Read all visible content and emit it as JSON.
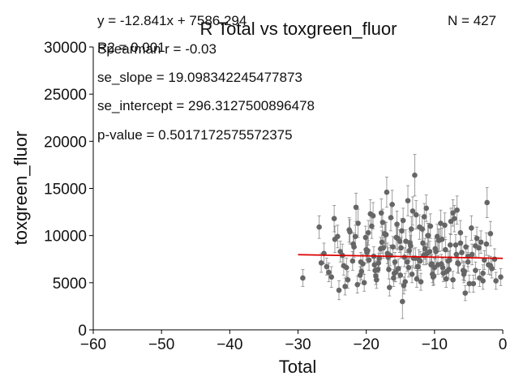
{
  "chart_data": {
    "type": "scatter",
    "title": "R Total vs toxgreen_fluor",
    "xlabel": "Total",
    "ylabel": "toxgreen_fluor",
    "xlim": [
      -60,
      0
    ],
    "ylim": [
      0,
      30000
    ],
    "xticks": [
      -60,
      -50,
      -40,
      -30,
      -20,
      -10,
      0
    ],
    "yticks": [
      0,
      5000,
      10000,
      15000,
      20000,
      25000,
      30000
    ],
    "xtick_labels": [
      "−60",
      "−50",
      "−40",
      "−30",
      "−20",
      "−10",
      "0"
    ],
    "ytick_labels": [
      "0",
      "5000",
      "10000",
      "15000",
      "20000",
      "25000",
      "30000"
    ],
    "grid": false,
    "colors": {
      "points": "#666666",
      "fit_line": "#dd0000",
      "error_bars": "#888888"
    },
    "annotations": {
      "equation": "y = -12.841x + 7586.294",
      "r2": "R2 = 0.001",
      "spearman": "Spearman r = -0.03",
      "se_slope": "se_slope = 19.098342245477873",
      "se_intercept": "se_intercept = 296.3127500896478",
      "p_value": "p-value = 0.5017172575572375",
      "n": "N = 427"
    },
    "fit": {
      "slope": -12.841,
      "intercept": 7586.294,
      "x_range": [
        -30,
        0
      ]
    },
    "series": [
      {
        "x": [
          -29.3,
          -26.9,
          -26.6,
          -26.2,
          -25.8,
          -25.1,
          -24.6,
          -24.0,
          -23.5,
          -22.9,
          -22.4,
          -21.8,
          -21.2,
          -20.7,
          -20.1,
          -19.6,
          -19.0,
          -18.5,
          -17.9,
          -17.3,
          -16.8,
          -16.2,
          -15.7,
          -15.1,
          -14.6,
          -14.0,
          -13.5,
          -12.9,
          -12.4,
          -11.8,
          -11.2,
          -10.7,
          -10.1,
          -9.6,
          -9.0,
          -8.5,
          -7.9,
          -7.3,
          -6.8,
          -6.2,
          -5.7,
          -5.1,
          -4.6,
          -4.0,
          -3.5,
          -2.9,
          -2.4,
          -1.8,
          -1.2,
          -0.3,
          -24.2,
          -23.1,
          -22.0,
          -21.5,
          -20.3,
          -19.2,
          -18.1,
          -17.0,
          -15.9,
          -14.8,
          -13.7,
          -12.6,
          -11.5,
          -10.4,
          -9.3,
          -8.2,
          -7.1,
          -6.0,
          -4.9,
          -3.8,
          -2.7,
          -1.6,
          -25.5,
          -24.7,
          -23.8,
          -22.7,
          -21.6,
          -20.5,
          -19.4,
          -18.3,
          -17.2,
          -16.1,
          -15.0,
          -13.9,
          -12.8,
          -11.7,
          -10.6,
          -9.5,
          -8.4,
          -7.3,
          -6.2,
          -5.1,
          -4.0,
          -2.9,
          -1.8,
          -21.3,
          -19.8,
          -18.7,
          -17.6,
          -16.5,
          -15.4,
          -14.3,
          -13.2,
          -12.1,
          -11.0,
          -9.9,
          -8.8,
          -7.7,
          -6.6,
          -5.5,
          -22.5,
          -20.9,
          -19.9,
          -18.8,
          -17.7,
          -16.6,
          -15.5,
          -14.4,
          -13.3,
          -12.2,
          -11.1,
          -10.0,
          -8.9,
          -7.8,
          -6.7,
          -5.6,
          -4.5,
          -3.4,
          -2.3,
          -23.3,
          -21.9,
          -20.8,
          -19.7,
          -18.6,
          -17.5,
          -16.4,
          -15.3,
          -14.2,
          -13.1,
          -12.0,
          -10.9,
          -9.8,
          -8.7,
          -7.6,
          -6.5,
          -5.4,
          -4.3,
          -3.2,
          -2.1,
          -1.0,
          -20.0,
          -18.9,
          -17.8,
          -16.7,
          -15.6,
          -14.5,
          -13.4,
          -12.3,
          -11.3,
          -10.2,
          -9.1,
          -8.0,
          -6.9,
          -5.8,
          -18.2,
          -17.1,
          -16.0,
          -14.9,
          -13.8,
          -12.7,
          -11.6,
          -10.5,
          -9.4,
          -8.3,
          -16.9,
          -15.8,
          -14.7,
          -13.6,
          -12.5,
          -11.4,
          -10.3
        ],
        "y": [
          5500,
          10900,
          7100,
          8100,
          6700,
          5600,
          9600,
          4200,
          7900,
          6600,
          10400,
          8800,
          11300,
          6200,
          9800,
          7400,
          12100,
          5300,
          8600,
          10200,
          7700,
          13300,
          6100,
          9400,
          11600,
          7200,
          8900,
          16400,
          6700,
          10700,
          12900,
          8300,
          5700,
          9900,
          7000,
          11100,
          6400,
          12400,
          8000,
          9200,
          5900,
          7800,
          10800,
          6300,
          8700,
          5200,
          9100,
          6800,
          7500,
          5600,
          9900,
          4600,
          7300,
          13000,
          5000,
          11000,
          7600,
          14600,
          6000,
          10500,
          8400,
          5400,
          12000,
          7000,
          9500,
          6200,
          11800,
          8200,
          4900,
          9700,
          7400,
          6500,
          6100,
          11800,
          8300,
          5300,
          9900,
          7000,
          12300,
          6400,
          10100,
          8800,
          5800,
          13700,
          7600,
          9200,
          11000,
          6900,
          8500,
          5300,
          10300,
          7200,
          8900,
          6000,
          10200,
          4800,
          8400,
          6300,
          11400,
          7900,
          9700,
          5100,
          12600,
          7300,
          10000,
          8600,
          6600,
          9000,
          7100,
          3900,
          10600,
          5800,
          8200,
          6900,
          9300,
          4500,
          11200,
          7700,
          5900,
          10900,
          8100,
          6600,
          9600,
          7400,
          12700,
          6200,
          8000,
          5500,
          13500,
          6800,
          9100,
          7200,
          10300,
          5700,
          8700,
          11900,
          6500,
          9400,
          7600,
          5100,
          10000,
          8300,
          6000,
          11500,
          7000,
          8800,
          4900,
          9300,
          6900,
          5200,
          8500,
          7800,
          12400,
          6400,
          9800,
          4700,
          10700,
          7500,
          8000,
          5600,
          11300,
          7300,
          9000,
          6300,
          7100,
          10100,
          5500,
          8700,
          6600,
          12200,
          7900,
          6900,
          9500,
          5400,
          8100,
          7200,
          3000,
          9200,
          6700,
          8600,
          5900
        ],
        "y_err": [
          900,
          1200,
          1000,
          1100,
          900,
          1100,
          1400,
          1000,
          1200,
          1000,
          1300,
          1100,
          1500,
          900,
          1200,
          1100,
          1400,
          900,
          1200,
          1300,
          1000,
          1500,
          1000,
          1200,
          1300,
          1000,
          1100,
          2200,
          1000,
          1300,
          1400,
          1100,
          900,
          1300,
          1000,
          1300,
          1000,
          1400,
          1100,
          1200,
          900,
          1100,
          1300,
          900,
          1100,
          900,
          1200,
          1000,
          1100,
          900,
          1200,
          900,
          1000,
          1500,
          900,
          1300,
          1000,
          1600,
          900,
          1300,
          1100,
          900,
          1400,
          1000,
          1200,
          1000,
          1400,
          1100,
          900,
          1200,
          1000,
          1000,
          1000,
          1400,
          1100,
          900,
          1200,
          1000,
          1500,
          1000,
          1300,
          1100,
          900,
          1600,
          1100,
          1200,
          1300,
          1000,
          1100,
          900,
          1300,
          1000,
          1100,
          900,
          1300,
          900,
          1100,
          1000,
          1400,
          1100,
          1200,
          900,
          1500,
          1000,
          1300,
          1100,
          1000,
          1200,
          1000,
          800,
          1300,
          900,
          1100,
          1000,
          1200,
          900,
          1400,
          1000,
          900,
          1300,
          1100,
          1000,
          1200,
          1000,
          1500,
          1000,
          1100,
          900,
          1600,
          1000,
          1200,
          1000,
          1300,
          900,
          1100,
          1400,
          1000,
          1200,
          1000,
          900,
          1300,
          1100,
          900,
          1400,
          1000,
          1100,
          900,
          1200,
          1000,
          900,
          1100,
          1000,
          1500,
          1000,
          1200,
          900,
          1300,
          1000,
          1100,
          900,
          1400,
          1000,
          1100,
          1000,
          1000,
          1300,
          900,
          1100,
          1000,
          1500,
          1000,
          1000,
          1200,
          900,
          1100,
          1000,
          1800,
          1200,
          1000,
          1100,
          900
        ]
      }
    ]
  }
}
